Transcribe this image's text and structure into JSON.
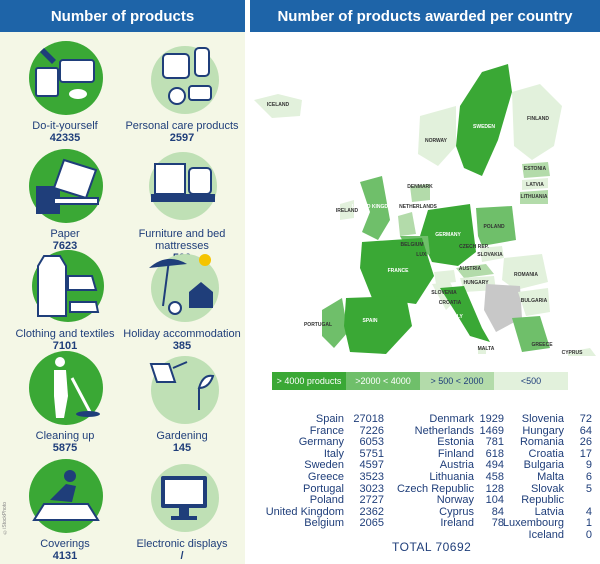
{
  "header": {
    "left_title": "Number of products",
    "right_title": "Number of products awarded per country"
  },
  "categories": [
    {
      "label": "Do-it-yourself",
      "value": "42335",
      "icon": "paint-bucket-icon"
    },
    {
      "label": "Personal care products",
      "value": "2597",
      "icon": "cosmetics-icon"
    },
    {
      "label": "Paper",
      "value": "7623",
      "icon": "book-icon"
    },
    {
      "label": "Furniture and bed mattresses",
      "value": "500",
      "icon": "bed-sofa-icon"
    },
    {
      "label": "Clothing and textiles",
      "value": "7101",
      "icon": "clothing-icon"
    },
    {
      "label": "Holiday accommodation",
      "value": "385",
      "icon": "beach-house-icon"
    },
    {
      "label": "Cleaning up",
      "value": "5875",
      "icon": "mop-person-icon"
    },
    {
      "label": "Gardening",
      "value": "145",
      "icon": "watering-can-icon"
    },
    {
      "label": "Coverings",
      "value": "4131",
      "icon": "floor-worker-icon"
    },
    {
      "label": "Electronic displays",
      "value": "/",
      "icon": "monitor-icon"
    }
  ],
  "copyright": "©iStockPhoto",
  "map_labels": [
    "ICELAND",
    "SWEDEN",
    "FINLAND",
    "NORWAY",
    "ESTONIA",
    "LATVIA",
    "LITHUANIA",
    "DENMARK",
    "IRELAND",
    "UNITED KINGDOM",
    "NETHERLANDS",
    "GERMANY",
    "POLAND",
    "BELGIUM",
    "CZECH REP.",
    "SLOVAKIA",
    "LUX.",
    "AUSTRIA",
    "HUNGARY",
    "FRANCE",
    "ROMANIA",
    "SLOVENIA",
    "CROATIA",
    "ITALY",
    "BULGARIA",
    "PORTUGAL",
    "SPAIN",
    "GREECE",
    "MALTA",
    "CYPRUS"
  ],
  "legend": [
    {
      "label": "> 4000 products",
      "color": "#3aa835",
      "text_color": "#ffffff"
    },
    {
      "label": ">2000 < 4000",
      "color": "#6fbf6a",
      "text_color": "#ffffff"
    },
    {
      "label": "> 500 < 2000",
      "color": "#b3dbaa",
      "text_color": "#1f3e7a"
    },
    {
      "label": "<500",
      "color": "#e2f1dc",
      "text_color": "#1f3e7a"
    }
  ],
  "countries": [
    [
      [
        "Spain",
        "27018"
      ],
      [
        "France",
        "7226"
      ],
      [
        "Germany",
        "6053"
      ],
      [
        "Italy",
        "5751"
      ],
      [
        "Sweden",
        "4597"
      ],
      [
        "Greece",
        "3523"
      ],
      [
        "Portugal",
        "3023"
      ],
      [
        "Poland",
        "2727"
      ],
      [
        "United Kingdom",
        "2362"
      ],
      [
        "Belgium",
        "2065"
      ]
    ],
    [
      [
        "Denmark",
        "1929"
      ],
      [
        "Netherlands",
        "1469"
      ],
      [
        "Estonia",
        "781"
      ],
      [
        "Finland",
        "618"
      ],
      [
        "Austria",
        "494"
      ],
      [
        "Lithuania",
        "458"
      ],
      [
        "Czech Republic",
        "128"
      ],
      [
        "Norway",
        "104"
      ],
      [
        "Cyprus",
        "84"
      ],
      [
        "Ireland",
        "78"
      ]
    ],
    [
      [
        "Slovenia",
        "72"
      ],
      [
        "Hungary",
        "64"
      ],
      [
        "Romania",
        "26"
      ],
      [
        "Croatia",
        "17"
      ],
      [
        "Bulgaria",
        "9"
      ],
      [
        "Malta",
        "6"
      ],
      [
        "Slovak Republic",
        "5"
      ],
      [
        "Latvia",
        "4"
      ],
      [
        "Luxembourg",
        "1"
      ],
      [
        "Iceland",
        "0"
      ]
    ]
  ],
  "total": "TOTAL  70692"
}
